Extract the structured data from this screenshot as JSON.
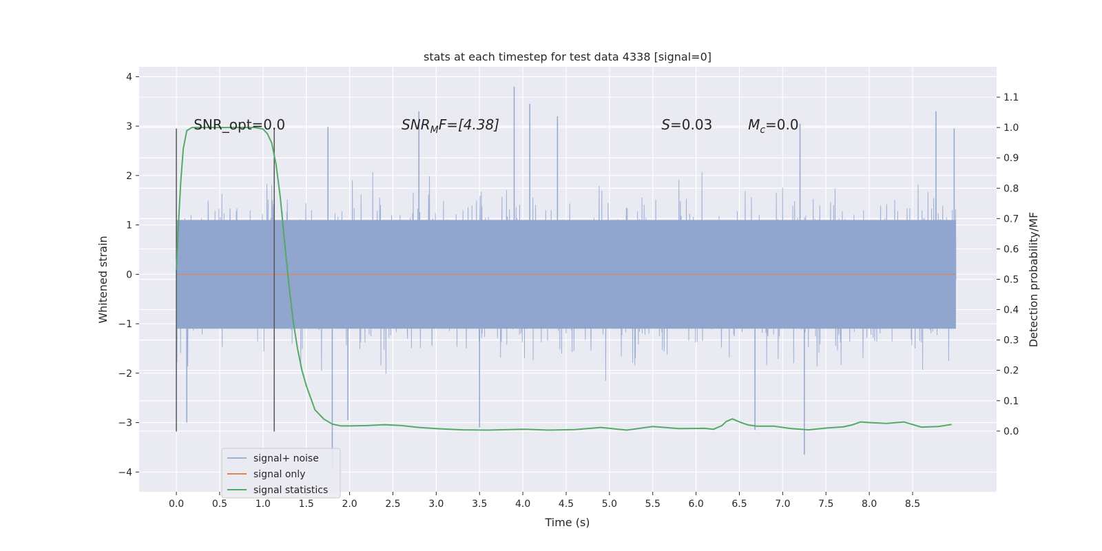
{
  "chart_data": {
    "type": "line",
    "title": "stats at each timestep for test data 4338 [signal=0]",
    "xlabel": "Time (s)",
    "ylabel": "Whitened strain",
    "y2label": "Detection probability/MF",
    "xlim": [
      -0.43,
      9.47
    ],
    "ylim": [
      -4.4,
      4.2
    ],
    "y2lim": [
      -0.2,
      1.2
    ],
    "x_ticks": [
      "0.0",
      "0.5",
      "1.0",
      "1.5",
      "2.0",
      "2.5",
      "3.0",
      "3.5",
      "4.0",
      "4.5",
      "5.0",
      "5.5",
      "6.0",
      "6.5",
      "7.0",
      "7.5",
      "8.0",
      "8.5"
    ],
    "y_ticks": [
      "4",
      "3",
      "2",
      "1",
      "0",
      "−1",
      "−2",
      "−3",
      "−4"
    ],
    "y2_ticks": [
      "1.1",
      "1.0",
      "0.9",
      "0.8",
      "0.7",
      "0.6",
      "0.5",
      "0.4",
      "0.3",
      "0.2",
      "0.1",
      "0.0"
    ],
    "grid": true,
    "legend_position": "lower-left",
    "annotations": [
      {
        "label": "SNR_opt=0.0",
        "x": 0.2,
        "y": 3.0
      },
      {
        "label": "SNR",
        "sub": "M",
        "label_rest": "F=[4.38]",
        "x": 2.6,
        "y": 3.0
      },
      {
        "label": "S",
        "label_rest": "=0.03",
        "x": 5.6,
        "y": 3.0
      },
      {
        "label": "M",
        "sub": "c",
        "label_rest": "=0.0",
        "x": 6.6,
        "y": 3.0
      }
    ],
    "vlines": [
      {
        "x": 0.0,
        "ymin": -3.18,
        "ymax": 2.95
      },
      {
        "x": 1.13,
        "ymin": -3.18,
        "ymax": 2.95
      }
    ],
    "series": [
      {
        "name": "signal+ noise",
        "axis": "left",
        "color": "#91a6cf",
        "style": "dense-noise",
        "x_range": [
          0.0,
          9.0
        ],
        "core_amplitude": 1.1,
        "peaks": [
          {
            "x": 3.9,
            "y": 3.8
          },
          {
            "x": 4.08,
            "y": 3.45
          },
          {
            "x": 8.77,
            "y": 3.3
          },
          {
            "x": 8.98,
            "y": 2.95
          },
          {
            "x": 2.8,
            "y": 3.3
          },
          {
            "x": 1.75,
            "y": 2.98
          },
          {
            "x": 1.8,
            "y": -3.9
          },
          {
            "x": 7.25,
            "y": -3.65
          },
          {
            "x": 3.5,
            "y": -3.1
          },
          {
            "x": 1.98,
            "y": -2.95
          },
          {
            "x": 6.68,
            "y": -3.15
          },
          {
            "x": 0.12,
            "y": -3.0
          },
          {
            "x": 4.4,
            "y": 3.2
          },
          {
            "x": 7.2,
            "y": 3.05
          }
        ]
      },
      {
        "name": "signal only",
        "axis": "left",
        "color": "#dd8452",
        "x": [
          0.0,
          9.0
        ],
        "y": [
          0.0,
          0.0
        ]
      },
      {
        "name": "signal statistics",
        "axis": "right",
        "color": "#55a868",
        "x": [
          0.0,
          0.02,
          0.05,
          0.08,
          0.12,
          0.18,
          0.25,
          0.35,
          0.5,
          0.7,
          0.9,
          1.0,
          1.05,
          1.1,
          1.15,
          1.2,
          1.25,
          1.3,
          1.35,
          1.4,
          1.45,
          1.5,
          1.55,
          1.6,
          1.7,
          1.8,
          1.9,
          2.0,
          2.2,
          2.4,
          2.6,
          2.8,
          3.0,
          3.3,
          3.6,
          4.0,
          4.3,
          4.6,
          4.9,
          5.2,
          5.5,
          5.8,
          6.1,
          6.2,
          6.3,
          6.35,
          6.42,
          6.5,
          6.6,
          6.7,
          6.9,
          7.1,
          7.3,
          7.5,
          7.7,
          7.8,
          7.9,
          8.0,
          8.2,
          8.4,
          8.6,
          8.8,
          8.95
        ],
        "y": [
          0.53,
          0.66,
          0.82,
          0.93,
          0.99,
          1.0,
          1.0,
          1.0,
          1.0,
          1.0,
          1.0,
          0.995,
          0.98,
          0.95,
          0.88,
          0.77,
          0.62,
          0.48,
          0.36,
          0.27,
          0.2,
          0.15,
          0.11,
          0.07,
          0.04,
          0.023,
          0.017,
          0.017,
          0.018,
          0.021,
          0.018,
          0.012,
          0.008,
          0.004,
          0.003,
          0.006,
          0.003,
          0.005,
          0.012,
          0.003,
          0.015,
          0.008,
          0.009,
          0.006,
          0.018,
          0.032,
          0.04,
          0.03,
          0.02,
          0.016,
          0.016,
          0.008,
          0.004,
          0.01,
          0.014,
          0.02,
          0.03,
          0.028,
          0.025,
          0.03,
          0.013,
          0.015,
          0.022
        ]
      }
    ]
  }
}
